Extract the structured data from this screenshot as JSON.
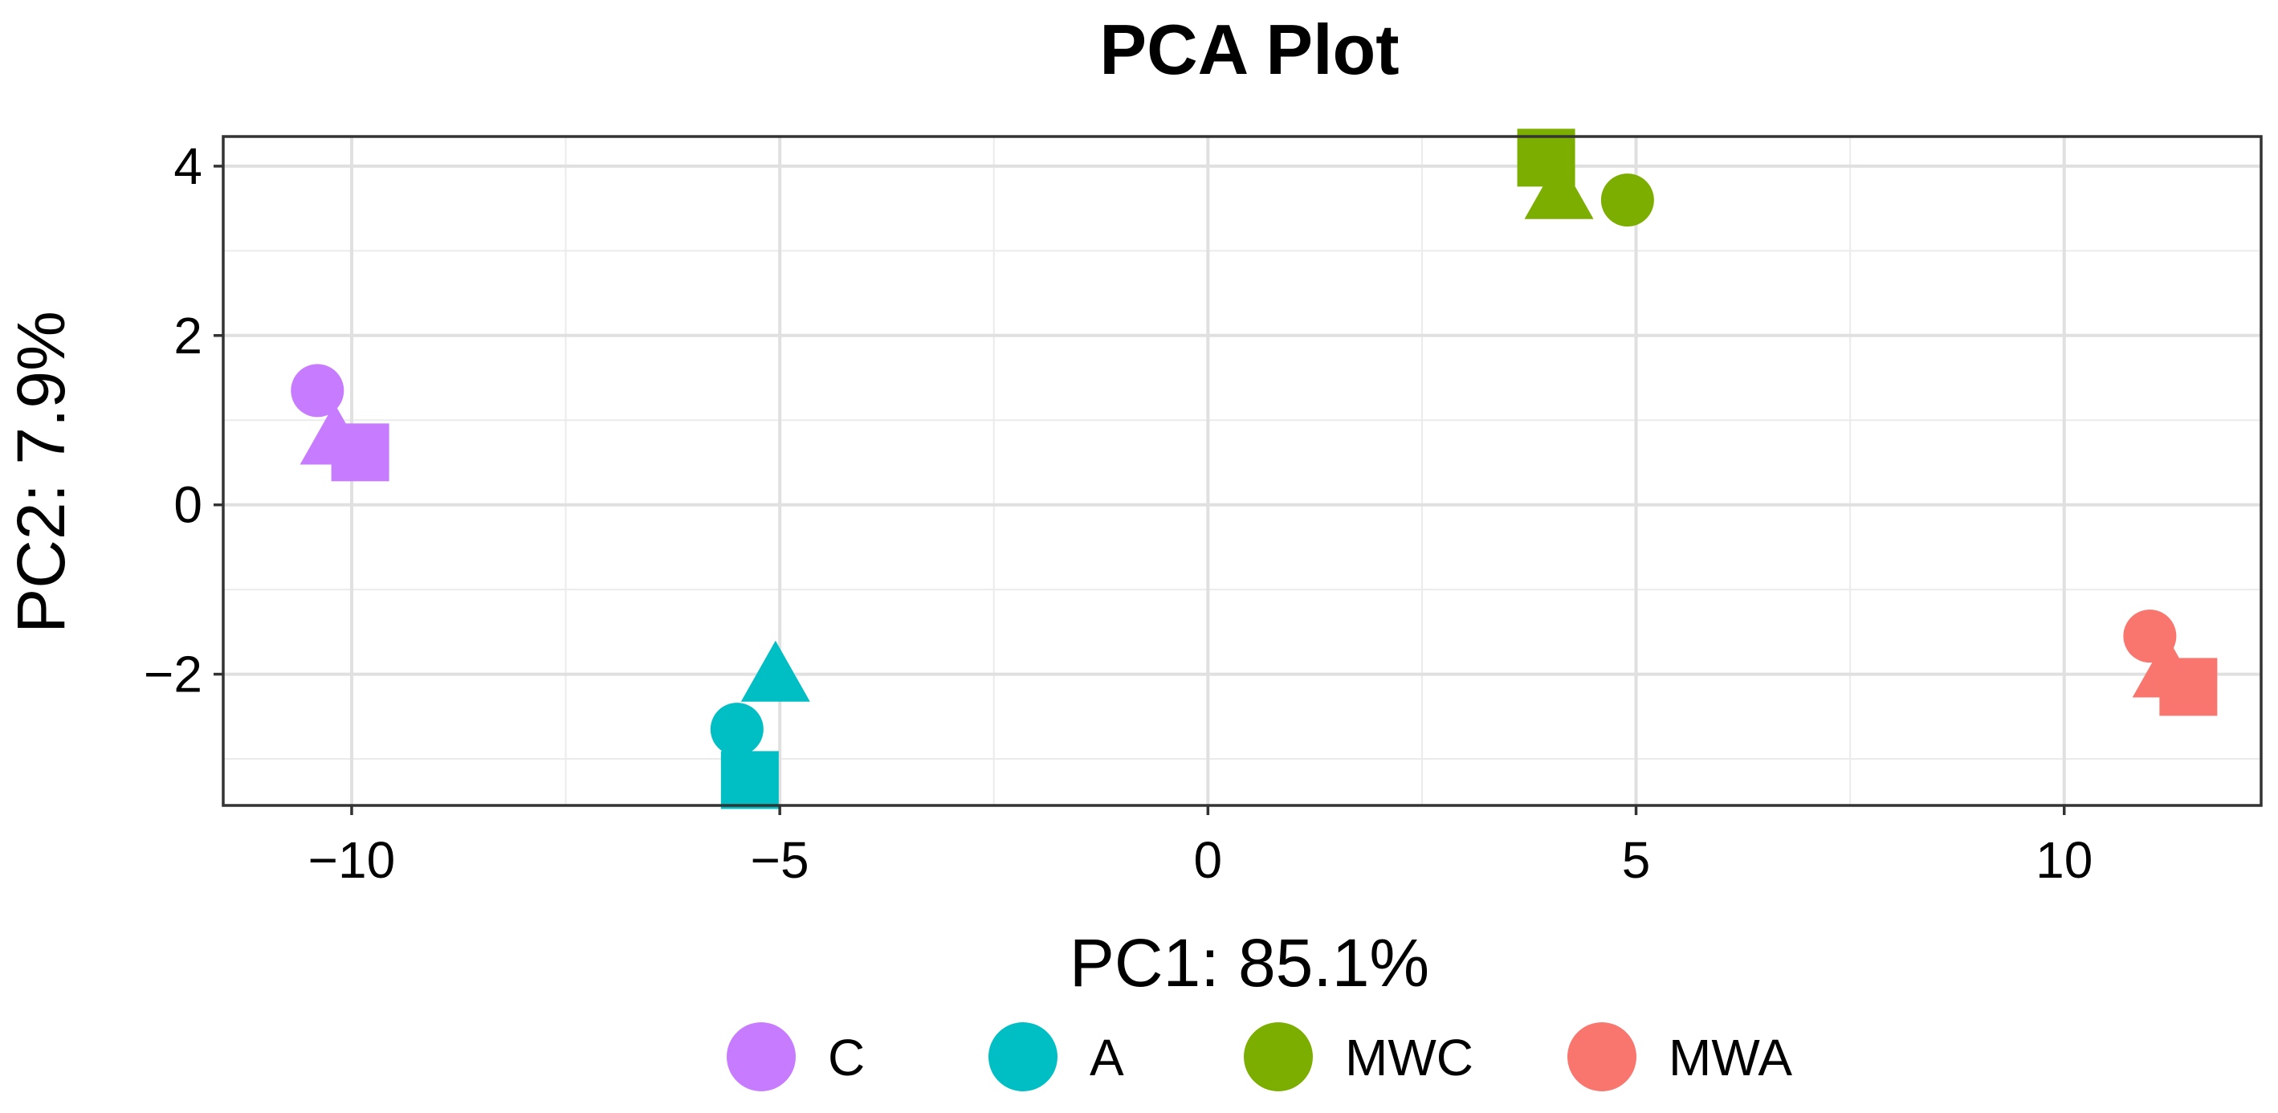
{
  "chart_data": {
    "type": "scatter",
    "title": "PCA Plot",
    "xlabel": "PC1: 85.1%",
    "ylabel": "PC2: 7.9%",
    "xlim": [
      -11.5,
      12.3
    ],
    "ylim": [
      -3.55,
      4.35
    ],
    "x_ticks": [
      -10,
      -5,
      0,
      5,
      10
    ],
    "x_tick_labels": [
      "−10",
      "−5",
      "0",
      "5",
      "10"
    ],
    "y_ticks": [
      -2,
      0,
      2,
      4
    ],
    "y_tick_labels": [
      "−2",
      "0",
      "2",
      "4"
    ],
    "x_minor_gridlines": [
      -7.5,
      -2.5,
      2.5,
      7.5
    ],
    "y_minor_gridlines": [
      -3,
      -1,
      1,
      3
    ],
    "grid": true,
    "legend_position": "bottom",
    "series": [
      {
        "name": "C",
        "color": "#C77CFF",
        "points": [
          {
            "x": -10.4,
            "y": 1.35,
            "shape": "circle"
          },
          {
            "x": -10.2,
            "y": 0.75,
            "shape": "triangle"
          },
          {
            "x": -9.9,
            "y": 0.62,
            "shape": "square"
          }
        ]
      },
      {
        "name": "A",
        "color": "#00BFC4",
        "points": [
          {
            "x": -5.5,
            "y": -2.65,
            "shape": "circle"
          },
          {
            "x": -5.05,
            "y": -2.05,
            "shape": "triangle"
          },
          {
            "x": -5.35,
            "y": -3.25,
            "shape": "square"
          }
        ]
      },
      {
        "name": "MWC",
        "color": "#7CAE00",
        "points": [
          {
            "x": 4.9,
            "y": 3.6,
            "shape": "circle"
          },
          {
            "x": 4.1,
            "y": 3.65,
            "shape": "triangle"
          },
          {
            "x": 3.95,
            "y": 4.1,
            "shape": "square"
          }
        ]
      },
      {
        "name": "MWA",
        "color": "#F8766D",
        "points": [
          {
            "x": 11.0,
            "y": -1.55,
            "shape": "circle"
          },
          {
            "x": 11.2,
            "y": -2.0,
            "shape": "triangle"
          },
          {
            "x": 11.45,
            "y": -2.15,
            "shape": "square"
          }
        ]
      }
    ]
  }
}
